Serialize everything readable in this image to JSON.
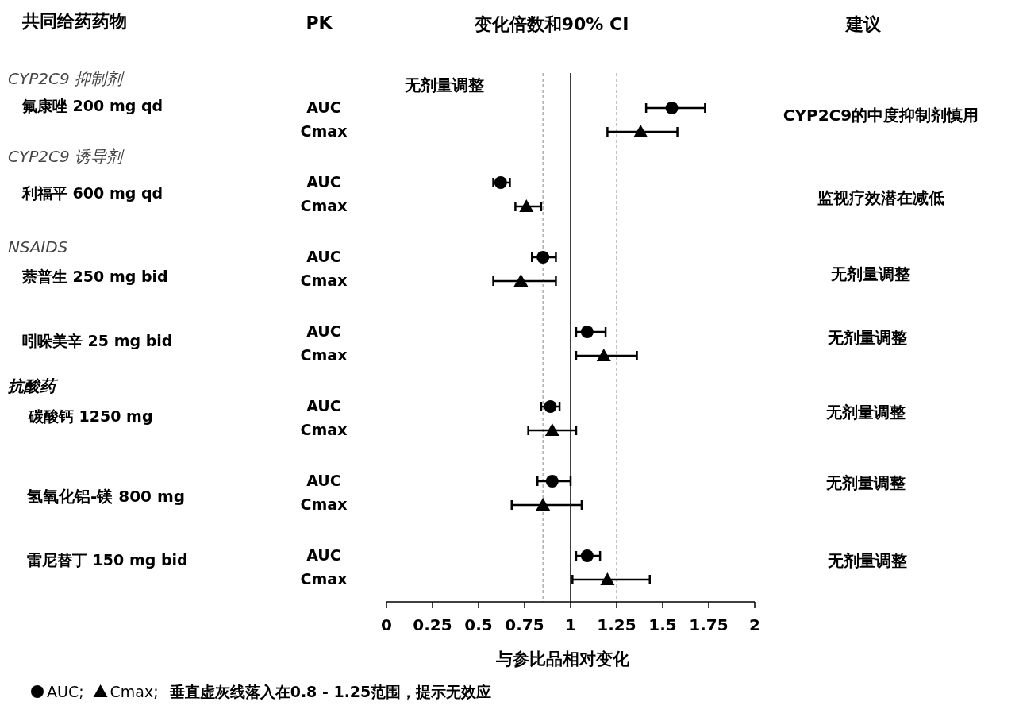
{
  "chart_data": {
    "type": "scatter",
    "orientation": "horizontal",
    "categories": [
      "AUC",
      "Cmax",
      "AUC",
      "Cmax",
      "AUC",
      "Cmax",
      "AUC",
      "Cmax",
      "AUC",
      "Cmax",
      "AUC",
      "Cmax",
      "AUC",
      "Cmax"
    ],
    "series": [
      {
        "name": "AUC;",
        "color": "#000000",
        "marker": "circle",
        "values": [
          1.55,
          null,
          0.62,
          null,
          0.85,
          null,
          1.09,
          null,
          0.89,
          null,
          0.9,
          null,
          1.09,
          null
        ],
        "errors": [
          [
            1.41,
            1.73
          ],
          null,
          [
            0.58,
            0.67
          ],
          null,
          [
            0.79,
            0.92
          ],
          null,
          [
            1.03,
            1.19
          ],
          null,
          [
            0.84,
            0.94
          ],
          null,
          [
            0.82,
            1.0
          ],
          null,
          [
            1.03,
            1.16
          ],
          null
        ]
      },
      {
        "name": "Cmax;",
        "color": "#000000",
        "marker": "triangle",
        "values": [
          null,
          1.38,
          null,
          0.76,
          null,
          0.73,
          null,
          1.18,
          null,
          0.9,
          null,
          0.85,
          null,
          1.2
        ],
        "errors": [
          null,
          [
            1.2,
            1.58
          ],
          null,
          [
            0.7,
            0.84
          ],
          null,
          [
            0.58,
            0.92
          ],
          null,
          [
            1.03,
            1.36
          ],
          null,
          [
            0.77,
            1.03
          ],
          null,
          [
            0.68,
            1.06
          ],
          null,
          [
            1.01,
            1.43
          ]
        ]
      }
    ],
    "xlim": [
      0,
      2
    ],
    "xticks": [
      0,
      0.25,
      0.5,
      0.75,
      1,
      1.25,
      1.5,
      1.75,
      2
    ],
    "xlabel": "与参比品相对变化",
    "ref_lines": [
      {
        "axis": "x",
        "value": 0.85,
        "color": "#b0b0b0",
        "line_style": "dashed"
      },
      {
        "axis": "x",
        "value": 1,
        "color": "#404040",
        "line_style": "solid"
      },
      {
        "axis": "x",
        "value": 1.25,
        "color": "#b0b0b0",
        "line_style": "dashed"
      }
    ],
    "legend": "bottom",
    "annotations": [
      "共同给药药物",
      "PK",
      "变化倍数和90% CI",
      "建议",
      "CYP2C9 抑制剂",
      "氟康唑 200 mg qd",
      "CYP2C9 诱导剂",
      "利福平 600 mg qd",
      "NSAIDS",
      "萘普生 250 mg bid",
      "吲哚美辛 25 mg bid",
      "抗酸药",
      "碳酸钙 1250 mg",
      "氢氧化铝-镁 800 mg",
      "雷尼替丁 150 mg bid",
      "无剂量调整",
      "CYP2C9的中度抑制剂慎用",
      "监视疗效潜在减低",
      "无剂量调整",
      "无剂量调整",
      "无剂量调整",
      "无剂量调整",
      "无剂量调整",
      "垂直虚灰线落入在0.8 - 1.25范围，提示无效应"
    ]
  }
}
